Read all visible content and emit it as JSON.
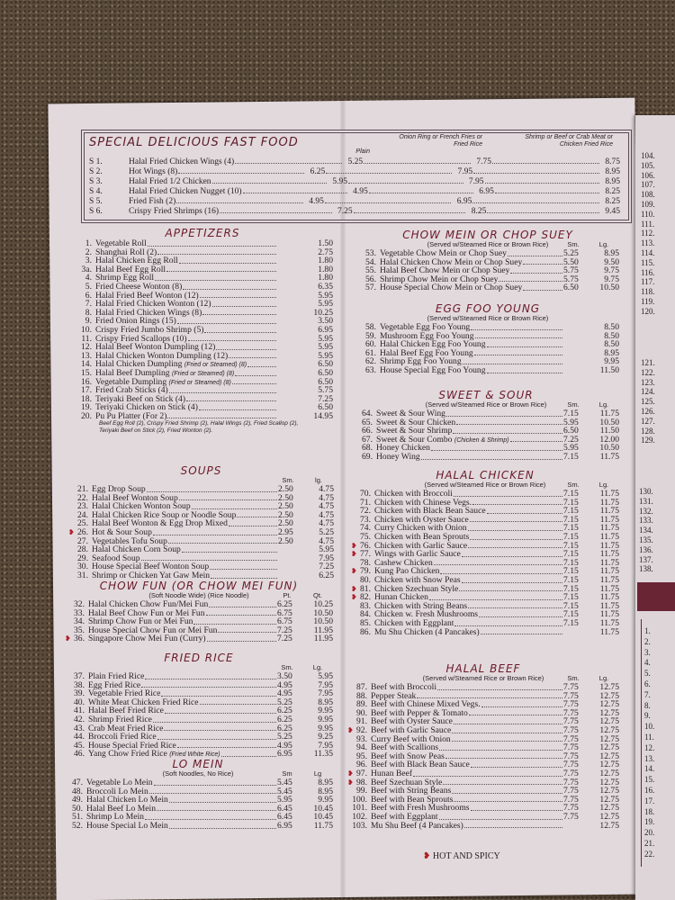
{
  "fast_food": {
    "title": "SPECIAL DELICIOUS FAST FOOD",
    "headers": [
      "Plain",
      "Onion Ring or French Fries or Fried Rice",
      "Shrimp or Beef or Crab Meat or Chicken Fried Rice"
    ],
    "items": [
      {
        "num": "S 1.",
        "name": "Halal Fried Chicken Wings (4)",
        "p1": "5.25",
        "p2": "7.75",
        "p3": "8.75"
      },
      {
        "num": "S 2.",
        "name": "Hot Wings (8)",
        "p1": "6.25",
        "p2": "7.95",
        "p3": "8.95"
      },
      {
        "num": "S 3.",
        "name": "Halal Fried 1/2 Chicken",
        "p1": "5.95",
        "p2": "7.95",
        "p3": "8.95"
      },
      {
        "num": "S 4.",
        "name": "Halal Fried Chicken Nugget (10)",
        "p1": "4.95",
        "p2": "6.95",
        "p3": "8.25"
      },
      {
        "num": "S 5.",
        "name": "Fried Fish (2)",
        "p1": "4.95",
        "p2": "6.95",
        "p3": "8.25"
      },
      {
        "num": "S 6.",
        "name": "Crispy Fried Shrimps (16)",
        "p1": "7.25",
        "p2": "8.25",
        "p3": "9.45"
      }
    ]
  },
  "sections": [
    {
      "id": "appetizers",
      "title": "APPETIZERS",
      "note": "",
      "cols": [],
      "items": [
        {
          "num": "1.",
          "name": "Vegetable Roll",
          "lg": "1.50"
        },
        {
          "num": "2.",
          "name": "Shanghai Roll (2)",
          "lg": "2.75"
        },
        {
          "num": "3.",
          "name": "Halal Chicken Egg Roll",
          "lg": "1.80"
        },
        {
          "num": "3a.",
          "name": "Halal Beef Egg Roll",
          "lg": "1.80"
        },
        {
          "num": "4.",
          "name": "Shrimp Egg Roll",
          "lg": "1.80"
        },
        {
          "num": "5.",
          "name": "Fried Cheese Wonton (8)",
          "lg": "6.35"
        },
        {
          "num": "6.",
          "name": "Halal Fried Beef Wonton (12)",
          "lg": "5.95"
        },
        {
          "num": "7.",
          "name": "Halal Fried Chicken Wonton (12)",
          "lg": "5.95"
        },
        {
          "num": "8.",
          "name": "Halal Fried Chicken Wings (8)",
          "lg": "10.25"
        },
        {
          "num": "9.",
          "name": "Fried Onion Rings (15)",
          "lg": "3.50"
        },
        {
          "num": "10.",
          "name": "Crispy Fried Jumbo Shrimp (5)",
          "lg": "6.95"
        },
        {
          "num": "11.",
          "name": "Crispy Fried Scallops (10)",
          "lg": "5.95"
        },
        {
          "num": "12.",
          "name": "Halal Beef Wonton Dumpling (12)",
          "lg": "5.95"
        },
        {
          "num": "13.",
          "name": "Halal Chicken Wonton Dumpling (12)",
          "lg": "5.95"
        },
        {
          "num": "14.",
          "name": "Halal Chicken Dumpling",
          "note": "(Fried or Steamed) (8)",
          "lg": "6.50"
        },
        {
          "num": "15.",
          "name": "Halal Beef Dumpling",
          "note": "(Fried or Steamed) (8)",
          "lg": "6.50"
        },
        {
          "num": "16.",
          "name": "Vegetable Dumpling",
          "note": "(Fried or Steamed) (8)",
          "lg": "6.50"
        },
        {
          "num": "17.",
          "name": "Fried Crab Sticks (4)",
          "lg": "5.75"
        },
        {
          "num": "18.",
          "name": "Teriyaki Beef on Stick (4)",
          "lg": "7.25"
        },
        {
          "num": "19.",
          "name": "Teriyaki Chicken on Stick (4)",
          "lg": "6.50"
        },
        {
          "num": "20.",
          "name": "Pu Pu Platter (For 2)",
          "lg": "14.95"
        }
      ],
      "subnote": [
        "Beef Egg Roll (2), Crispy Fried Shrimp (2), Halal Wings (2), Fried Scallop (2),",
        "Teriyaki Beef on Stick (2), Fried Wonton (2)."
      ]
    },
    {
      "id": "soups",
      "title": "SOUPS",
      "note": "",
      "cols": [
        "Sm.",
        "lg."
      ],
      "items": [
        {
          "num": "21.",
          "name": "Egg Drop Soup",
          "sm": "2.50",
          "lg": "4.75"
        },
        {
          "num": "22.",
          "name": "Halal Beef Wonton Soup",
          "sm": "2.50",
          "lg": "4.75"
        },
        {
          "num": "23.",
          "name": "Halal Chicken Wonton Soup",
          "sm": "2.50",
          "lg": "4.75"
        },
        {
          "num": "24.",
          "name": "Halal Chicken Rice Soup or Noodle Soup",
          "sm": "2.50",
          "lg": "4.75"
        },
        {
          "num": "25.",
          "name": "Halal Beef Wonton & Egg Drop Mixed",
          "sm": "2.50",
          "lg": "4.75"
        },
        {
          "num": "26.",
          "name": "Hot & Sour Soup",
          "sm": "2.95",
          "lg": "5.25",
          "spicy": true
        },
        {
          "num": "27.",
          "name": "Vegetables Tofu Soup",
          "sm": "2.50",
          "lg": "4.75"
        },
        {
          "num": "28.",
          "name": "Halal Chicken Corn Soup",
          "lg": "5.95"
        },
        {
          "num": "29.",
          "name": "Seafood Soup",
          "lg": "7.95"
        },
        {
          "num": "30.",
          "name": "House Special Beef Wonton Soup",
          "lg": "7.25"
        },
        {
          "num": "31.",
          "name": "Shrimp or Chicken Yat Gaw Mein",
          "lg": "6.25"
        }
      ]
    },
    {
      "id": "chowfun",
      "title": "CHOW FUN (OR CHOW MEI FUN)",
      "note": "(Soft Noodle Wide) (Rice Noodle)",
      "cols": [
        "Pt.",
        "Qt."
      ],
      "items": [
        {
          "num": "32.",
          "name": "Halal Chicken Chow Fun/Mei Fun",
          "sm": "6.25",
          "lg": "10.25"
        },
        {
          "num": "33.",
          "name": "Halal Beef Chow Fun or Mei Fun",
          "sm": "6.75",
          "lg": "10.50"
        },
        {
          "num": "34.",
          "name": "Shrimp Chow Fun or Mei Fun",
          "sm": "6.75",
          "lg": "10.50"
        },
        {
          "num": "35.",
          "name": "House Special Chow Fun or Mei Fun",
          "sm": "7.25",
          "lg": "11.95"
        },
        {
          "num": "36.",
          "name": "Singapore Chow Mei Fun (Curry)",
          "sm": "7.25",
          "lg": "11.95",
          "spicy": true
        }
      ]
    },
    {
      "id": "friedrice",
      "title": "FRIED RICE",
      "note": "",
      "cols": [
        "Sm.",
        "Lg."
      ],
      "items": [
        {
          "num": "37.",
          "name": "Plain Fried Rice",
          "sm": "3.50",
          "lg": "5.95"
        },
        {
          "num": "38.",
          "name": "Egg Fried Rice",
          "sm": "4.95",
          "lg": "7.95"
        },
        {
          "num": "39.",
          "name": "Vegetable Fried Rice",
          "sm": "4.95",
          "lg": "7.95"
        },
        {
          "num": "40.",
          "name": "White Meat Chicken Fried Rice",
          "sm": "5.25",
          "lg": "8.95"
        },
        {
          "num": "41.",
          "name": "Halal Beef Fried Rice",
          "sm": "6.25",
          "lg": "9.95"
        },
        {
          "num": "42.",
          "name": "Shrimp Fried Rice",
          "sm": "6.25",
          "lg": "9.95"
        },
        {
          "num": "43.",
          "name": "Crab Meat Fried Rice",
          "sm": "6.25",
          "lg": "9.95"
        },
        {
          "num": "44.",
          "name": "Broccoli Fried Rice",
          "sm": "5.25",
          "lg": "9.25"
        },
        {
          "num": "45.",
          "name": "House Special Fried Rice",
          "sm": "4.95",
          "lg": "7.95"
        },
        {
          "num": "46.",
          "name": "Yang Chow Fried Rice",
          "note": "(Fried White Rice)",
          "sm": "6.95",
          "lg": "11.35"
        }
      ]
    },
    {
      "id": "lomein",
      "title": "LO MEIN",
      "note": "(Soft Noodles, No Rice)",
      "cols": [
        "Sm",
        "Lg"
      ],
      "items": [
        {
          "num": "47.",
          "name": "Vegetable Lo Mein",
          "sm": "5.45",
          "lg": "8.95"
        },
        {
          "num": "48.",
          "name": "Broccoli Lo Mein",
          "sm": "5.45",
          "lg": "8.95"
        },
        {
          "num": "49.",
          "name": "Halal Chicken Lo Mein",
          "sm": "5.95",
          "lg": "9.95"
        },
        {
          "num": "50.",
          "name": "Halal Beef Lo Mein",
          "sm": "6.45",
          "lg": "10.45"
        },
        {
          "num": "51.",
          "name": "Shrimp Lo Mein",
          "sm": "6.45",
          "lg": "10.45"
        },
        {
          "num": "52.",
          "name": "House Special Lo Mein",
          "sm": "6.95",
          "lg": "11.75"
        }
      ]
    },
    {
      "id": "chowmein",
      "title": "CHOW MEIN OR CHOP SUEY",
      "note": "(Served w/Steamed Rice or Brown Rice)",
      "cols": [
        "Sm.",
        "Lg."
      ],
      "items": [
        {
          "num": "53.",
          "name": "Vegetable Chow Mein or Chop Suey",
          "sm": "5.25",
          "lg": "8.95"
        },
        {
          "num": "54.",
          "name": "Halal Chicken Chow Mein or Chop Suey",
          "sm": "5.50",
          "lg": "9.50"
        },
        {
          "num": "55.",
          "name": "Halal Beef Chow Mein or Chop Suey",
          "sm": "5.75",
          "lg": "9.75"
        },
        {
          "num": "56.",
          "name": "Shrimp Chow Mein or Chop Suey",
          "sm": "5.75",
          "lg": "9.75"
        },
        {
          "num": "57.",
          "name": "House Special Chow Mein or Chop Suey",
          "sm": "6.50",
          "lg": "10.50"
        }
      ]
    },
    {
      "id": "eggfoo",
      "title": "EGG FOO YOUNG",
      "note": "(Served w/Steamed Rice or Brown Rice)",
      "cols": [],
      "items": [
        {
          "num": "58.",
          "name": "Vegetable Egg Foo Young",
          "lg": "8.50"
        },
        {
          "num": "59.",
          "name": "Mushroom Egg Foo Young",
          "lg": "8.50"
        },
        {
          "num": "60.",
          "name": "Halal Chicken Egg Foo Young",
          "lg": "8.50"
        },
        {
          "num": "61.",
          "name": "Halal Beef Egg Foo Young",
          "lg": "8.95"
        },
        {
          "num": "62.",
          "name": "Shrimp Egg Foo Young",
          "lg": "9.95"
        },
        {
          "num": "63.",
          "name": "House Special Egg Foo Young",
          "lg": "11.50"
        }
      ]
    },
    {
      "id": "sweetsour",
      "title": "SWEET & SOUR",
      "note": "(Served w/Steamed Rice or Brown Rice)",
      "cols": [
        "Sm.",
        "Lg."
      ],
      "items": [
        {
          "num": "64.",
          "name": "Sweet & Sour Wing",
          "sm": "7.15",
          "lg": "11.75"
        },
        {
          "num": "65.",
          "name": "Sweet & Sour Chicken",
          "sm": "5.95",
          "lg": "10.50"
        },
        {
          "num": "66.",
          "name": "Sweet & Sour Shrimp",
          "sm": "6.50",
          "lg": "11.50"
        },
        {
          "num": "67.",
          "name": "Sweet & Sour Combo",
          "note": "(Chicken & Shrimp)",
          "sm": "7.25",
          "lg": "12.00"
        },
        {
          "num": "68.",
          "name": "Honey Chicken",
          "sm": "5.95",
          "lg": "10.50"
        },
        {
          "num": "69.",
          "name": "Honey Wing",
          "sm": "7.15",
          "lg": "11.75"
        }
      ]
    },
    {
      "id": "halalchicken",
      "title": "HALAL CHICKEN",
      "note": "(Served w/Steamed Rice or Brown Rice)",
      "cols": [
        "Sm.",
        "Lg."
      ],
      "items": [
        {
          "num": "70.",
          "name": "Chicken with Broccoli",
          "sm": "7.15",
          "lg": "11.75"
        },
        {
          "num": "71.",
          "name": "Chicken with Chinese Vegs.",
          "sm": "7.15",
          "lg": "11.75"
        },
        {
          "num": "72.",
          "name": "Chicken with Black Bean Sauce",
          "sm": "7.15",
          "lg": "11.75"
        },
        {
          "num": "73.",
          "name": "Chicken with Oyster Sauce",
          "sm": "7.15",
          "lg": "11.75"
        },
        {
          "num": "74.",
          "name": "Curry Chicken with Onion",
          "sm": "7.15",
          "lg": "11.75"
        },
        {
          "num": "75.",
          "name": "Chicken with Bean Sprouts",
          "sm": "7.15",
          "lg": "11.75"
        },
        {
          "num": "76.",
          "name": "Chicken with Garlic Sauce",
          "sm": "7.15",
          "lg": "11.75",
          "spicy": true
        },
        {
          "num": "77.",
          "name": "Wings with Garlic Sauce",
          "sm": "7.15",
          "lg": "11.75",
          "spicy": true
        },
        {
          "num": "78.",
          "name": "Cashew Chicken",
          "sm": "7.15",
          "lg": "11.75"
        },
        {
          "num": "79.",
          "name": "Kung Pao Chicken",
          "sm": "7.15",
          "lg": "11.75",
          "spicy": true
        },
        {
          "num": "80.",
          "name": "Chicken with Snow Peas",
          "sm": "7.15",
          "lg": "11.75"
        },
        {
          "num": "81.",
          "name": "Chicken Szechuan Style",
          "sm": "7.15",
          "lg": "11.75",
          "spicy": true
        },
        {
          "num": "82.",
          "name": "Hunan Chicken",
          "sm": "7.15",
          "lg": "11.75",
          "spicy": true
        },
        {
          "num": "83.",
          "name": "Chicken with String Beans",
          "sm": "7.15",
          "lg": "11.75"
        },
        {
          "num": "84.",
          "name": "Chicken w. Fresh Mushrooms",
          "sm": "7.15",
          "lg": "11.75"
        },
        {
          "num": "85.",
          "name": "Chicken with Eggplant",
          "sm": "7.15",
          "lg": "11.75"
        },
        {
          "num": "86.",
          "name": "Mu Shu Chicken (4 Pancakes)",
          "lg": "11.75"
        }
      ]
    },
    {
      "id": "halalbeef",
      "title": "HALAL BEEF",
      "note": "(Served w/Steamed Rice or Brown Rice)",
      "cols": [
        "Sm.",
        "Lg."
      ],
      "items": [
        {
          "num": "87.",
          "name": "Beef with Broccoli",
          "sm": "7.75",
          "lg": "12.75"
        },
        {
          "num": "88.",
          "name": "Pepper Steak",
          "sm": "7.75",
          "lg": "12.75"
        },
        {
          "num": "89.",
          "name": "Beef with Chinese Mixed Vegs.",
          "sm": "7.75",
          "lg": "12.75"
        },
        {
          "num": "90.",
          "name": "Beef with Pepper & Tomato",
          "sm": "7.75",
          "lg": "12.75"
        },
        {
          "num": "91.",
          "name": "Beef with Oyster Sauce",
          "sm": "7.75",
          "lg": "12.75"
        },
        {
          "num": "92.",
          "name": "Beef with Garlic Sauce",
          "sm": "7.75",
          "lg": "12.75",
          "spicy": true
        },
        {
          "num": "93.",
          "name": "Curry Beef with Onion",
          "sm": "7.75",
          "lg": "12.75"
        },
        {
          "num": "94.",
          "name": "Beef with Scallions",
          "sm": "7.75",
          "lg": "12.75"
        },
        {
          "num": "95.",
          "name": "Beef with Snow Peas",
          "sm": "7.75",
          "lg": "12.75"
        },
        {
          "num": "96.",
          "name": "Beef with Black Bean Sauce",
          "sm": "7.75",
          "lg": "12.75"
        },
        {
          "num": "97.",
          "name": "Hunan Beef",
          "sm": "7.75",
          "lg": "12.75",
          "spicy": true
        },
        {
          "num": "98.",
          "name": "Beef Szechuan Style",
          "sm": "7.75",
          "lg": "12.75",
          "spicy": true
        },
        {
          "num": "99.",
          "name": "Beef with String Beans",
          "sm": "7.75",
          "lg": "12.75"
        },
        {
          "num": "100.",
          "name": "Beef with Bean Sprouts",
          "sm": "7.75",
          "lg": "12.75"
        },
        {
          "num": "101.",
          "name": "Beef with Fresh Mushrooms",
          "sm": "7.75",
          "lg": "12.75"
        },
        {
          "num": "102.",
          "name": "Beef with Eggplant",
          "sm": "7.75",
          "lg": "12.75"
        },
        {
          "num": "103.",
          "name": "Mu Shu Beef (4 Pancakes)",
          "lg": "12.75"
        }
      ]
    }
  ],
  "legend": {
    "icon": "chili-pepper-icon",
    "label": "HOT AND SPICY",
    "color": "#b0202a"
  },
  "next_page": {
    "numbers_a": [
      "104.",
      "105.",
      "106.",
      "107.",
      "108.",
      "109.",
      "110.",
      "111.",
      "112.",
      "113.",
      "114.",
      "115.",
      "116.",
      "117.",
      "118.",
      "119.",
      "120."
    ],
    "numbers_b": [
      "121.",
      "122.",
      "123.",
      "124.",
      "125.",
      "126.",
      "127.",
      "128.",
      "129."
    ],
    "numbers_c": [
      "130.",
      "131.",
      "132.",
      "133.",
      "134.",
      "135.",
      "136.",
      "137.",
      "138."
    ],
    "numbers_d": [
      "1.",
      "2.",
      "3.",
      "4.",
      "5.",
      "6.",
      "7.",
      "8.",
      "9.",
      "10.",
      "11.",
      "12.",
      "13.",
      "14.",
      "15.",
      "16.",
      "17.",
      "18.",
      "19.",
      "20.",
      "21.",
      "22."
    ]
  },
  "colors": {
    "heading": "#6a1a2a",
    "paper": "#e2d9dc",
    "text": "#2a2228",
    "band": "#6a2535"
  }
}
